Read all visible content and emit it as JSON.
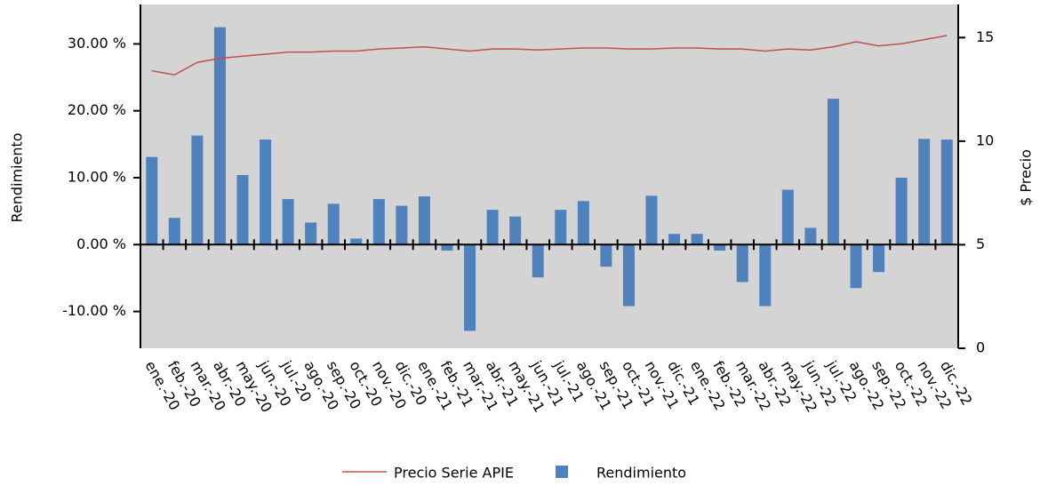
{
  "chart_data": {
    "type": "bar_line",
    "categories": [
      "ene.-20",
      "feb.-20",
      "mar.-20",
      "abr.-20",
      "may.-20",
      "jun.-20",
      "jul.-20",
      "ago.-20",
      "sep.-20",
      "oct.-20",
      "nov.-20",
      "dic.-20",
      "ene.-21",
      "feb.-21",
      "mar.-21",
      "abr.-21",
      "may.-21",
      "jun.-21",
      "jul.-21",
      "ago.-21",
      "sep.-21",
      "oct.-21",
      "nov.-21",
      "dic.-21",
      "ene.-22",
      "feb.-22",
      "mar.-22",
      "abr.-22",
      "may.-22",
      "jun.-22",
      "jul.-22",
      "ago.-22",
      "sep.-22",
      "oct.-22",
      "nov.-22",
      "dic.-22"
    ],
    "series": [
      {
        "name": "Precio Serie APIE",
        "type": "line",
        "axis": "y2",
        "color": "#c0504d",
        "values": [
          13.4,
          13.2,
          13.8,
          14.0,
          14.1,
          14.2,
          14.3,
          14.3,
          14.35,
          14.35,
          14.45,
          14.5,
          14.55,
          14.45,
          14.35,
          14.45,
          14.45,
          14.4,
          14.45,
          14.5,
          14.5,
          14.45,
          14.45,
          14.5,
          14.5,
          14.45,
          14.45,
          14.35,
          14.45,
          14.4,
          14.55,
          14.8,
          14.6,
          14.7,
          14.9,
          15.1
        ]
      },
      {
        "name": "Rendimiento",
        "type": "bar",
        "color": "#4f81bd",
        "values": [
          13.1,
          4.0,
          16.3,
          32.5,
          10.4,
          15.7,
          6.8,
          3.3,
          6.1,
          0.9,
          6.8,
          5.8,
          7.2,
          -0.9,
          -12.9,
          5.2,
          4.2,
          -4.9,
          5.2,
          6.5,
          -3.3,
          -9.2,
          7.3,
          1.6,
          1.6,
          -0.9,
          -5.6,
          -9.2,
          8.2,
          2.5,
          21.8,
          -6.5,
          -4.1,
          10.0,
          15.8,
          15.7
        ]
      }
    ],
    "ylabel": "Rendimiento",
    "y2label": "$ Precio",
    "ylim": [
      -15.5,
      35.9
    ],
    "yticks": [
      {
        "value": -10,
        "label": "-10.00 %"
      },
      {
        "value": 0,
        "label": "0.00 %"
      },
      {
        "value": 10,
        "label": "10.00 %"
      },
      {
        "value": 20,
        "label": "20.00 %"
      },
      {
        "value": 30,
        "label": "30.00 %"
      }
    ],
    "y2lim": [
      0,
      16.6
    ],
    "y2ticks": [
      0,
      5,
      10,
      15
    ],
    "legend": "bottom"
  }
}
